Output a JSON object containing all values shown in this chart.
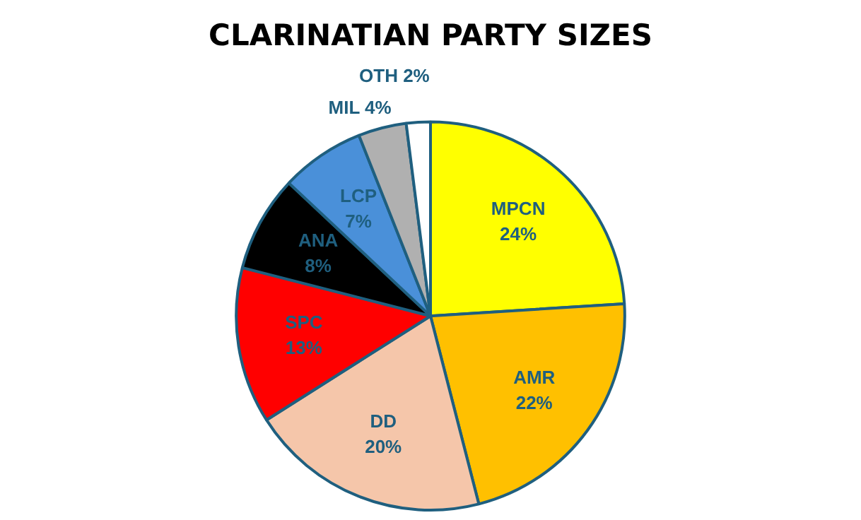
{
  "chart_data": {
    "type": "pie",
    "title": "CLARINATIAN PARTY SIZES",
    "categories": [
      "MPCN",
      "AMR",
      "DD",
      "SPC",
      "ANA",
      "LCP",
      "MIL",
      "OTH"
    ],
    "values": [
      24,
      22,
      20,
      13,
      8,
      7,
      4,
      2
    ],
    "value_labels": [
      "24%",
      "22%",
      "20%",
      "13%",
      "8%",
      "7%",
      "4%",
      "2%"
    ],
    "colors": [
      "#ffff00",
      "#ffc000",
      "#f5c6aa",
      "#ff0000",
      "#000000",
      "#4a90d9",
      "#b0b0b0",
      "#ffffff"
    ],
    "legend": false
  }
}
